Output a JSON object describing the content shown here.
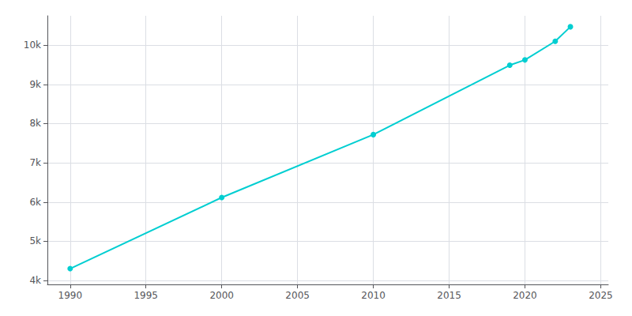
{
  "chart_data": {
    "type": "line",
    "x": [
      1990,
      2000,
      2010,
      2019,
      2020,
      2022,
      2023
    ],
    "values": [
      4302,
      6116,
      7720,
      9490,
      9625,
      10100,
      10470
    ],
    "color": "#00CED1",
    "marker": "circle",
    "xlim": [
      1988.5,
      2025.5
    ],
    "xticks": [
      1990,
      1995,
      2000,
      2005,
      2010,
      2015,
      2020,
      2025
    ],
    "ylim": [
      3900,
      10750
    ],
    "yticks": [
      {
        "value": 4000,
        "label": "4k"
      },
      {
        "value": 5000,
        "label": "5k"
      },
      {
        "value": 6000,
        "label": "6k"
      },
      {
        "value": 7000,
        "label": "7k"
      },
      {
        "value": 8000,
        "label": "8k"
      },
      {
        "value": 9000,
        "label": "9k"
      },
      {
        "value": 10000,
        "label": "10k"
      }
    ],
    "grid": true
  }
}
